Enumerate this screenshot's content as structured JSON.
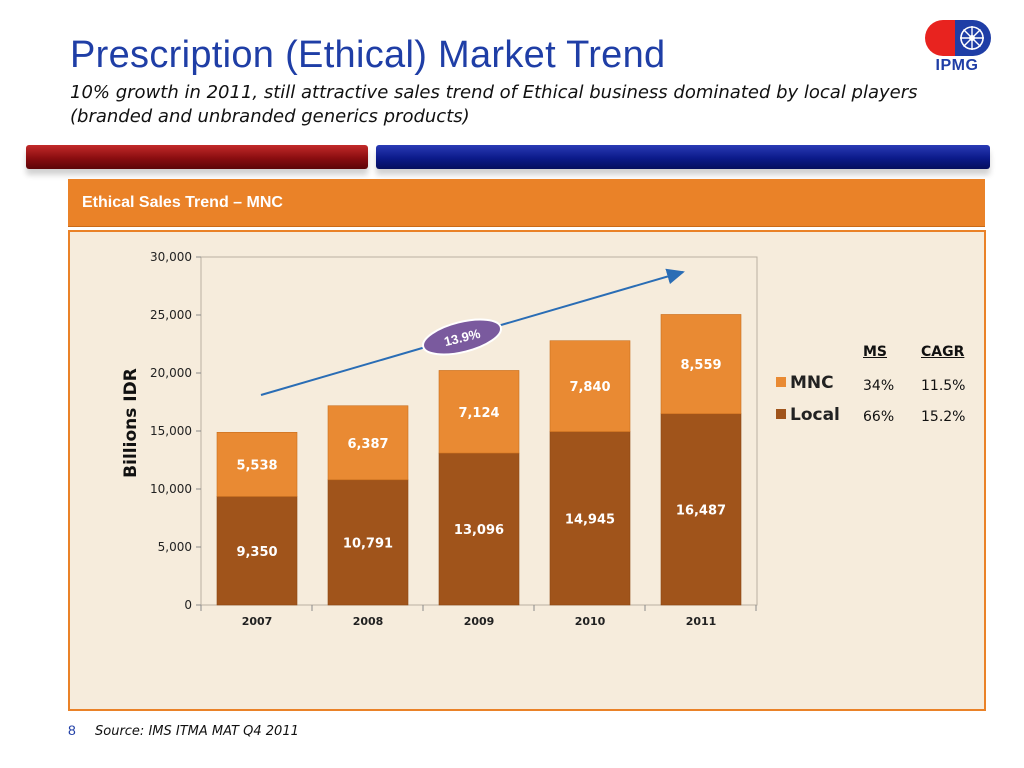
{
  "slide": {
    "title": "Prescription (Ethical) Market Trend",
    "subtitle": "10% growth in 2011, still attractive sales trend of Ethical business dominated by local players (branded and unbranded generics products)",
    "logo_text": "IPMG",
    "panel_header": "Ethical Sales Trend – MNC",
    "footer_page": "8",
    "footer_source": "Source: IMS ITMA MAT Q4 2011"
  },
  "ms_table": {
    "header_ms": "MS",
    "header_cagr": "CAGR",
    "rows": [
      {
        "ms": "34%",
        "cagr": "11.5%"
      },
      {
        "ms": "66%",
        "cagr": "15.2%"
      }
    ]
  },
  "colors": {
    "title_blue": "#1f3ea6",
    "header_orange": "#ea8228",
    "mnc": "#e98a33",
    "local": "#a0541b",
    "arrow": "#2a6db5",
    "badge": "#7a5a9e"
  },
  "chart_data": {
    "type": "bar",
    "stacked": true,
    "categories": [
      "2007",
      "2008",
      "2009",
      "2010",
      "2011"
    ],
    "series": [
      {
        "name": "Local",
        "values": [
          9350,
          10791,
          13096,
          14945,
          16487
        ],
        "labels": [
          "9,350",
          "10,791",
          "13,096",
          "14,945",
          "16,487"
        ]
      },
      {
        "name": "MNC",
        "values": [
          5538,
          6387,
          7124,
          7840,
          8559
        ],
        "labels": [
          "5,538",
          "6,387",
          "7,124",
          "7,840",
          "8,559"
        ]
      }
    ],
    "ylabel": "Billions IDR",
    "xlabel": "",
    "ylim": [
      0,
      30000
    ],
    "yticks": [
      0,
      5000,
      10000,
      15000,
      20000,
      25000,
      30000
    ],
    "ytick_labels": [
      "0",
      "5,000",
      "10,000",
      "15,000",
      "20,000",
      "25,000",
      "30,000"
    ],
    "legend": {
      "placement": "right",
      "entries": [
        "MNC",
        "Local"
      ]
    },
    "annotation": {
      "text": "13.9%",
      "type": "trend-arrow"
    },
    "grid": false
  }
}
